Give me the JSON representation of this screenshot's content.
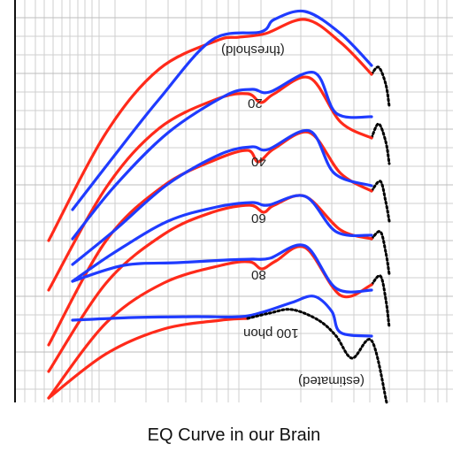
{
  "caption": "EQ Curve in our Brain",
  "chart_data": {
    "type": "line",
    "title": "EQ Curve in our Brain",
    "note": "The figure is shown flipped horizontally and vertically; labels appear mirrored.",
    "grid": true,
    "colors": {
      "red": "#ff2a1a",
      "blue": "#1f3bff",
      "estimated": "#000000",
      "grid": "#cfcfcf",
      "axis": "#111111"
    },
    "labels": [
      "(threshold)",
      "20",
      "40",
      "60",
      "80",
      "100 phon",
      "(estimated)"
    ],
    "series": [
      {
        "name": "(threshold)",
        "color": "red",
        "points": [
          [
            55,
            272
          ],
          [
            120,
            150
          ],
          [
            180,
            78
          ],
          [
            245,
            46
          ],
          [
            270,
            42
          ],
          [
            300,
            38
          ],
          [
            345,
            22
          ],
          [
            385,
            48
          ],
          [
            420,
            84
          ]
        ]
      },
      {
        "name": "(threshold)",
        "color": "blue",
        "points": [
          [
            82,
            237
          ],
          [
            130,
            175
          ],
          [
            180,
            112
          ],
          [
            240,
            45
          ],
          [
            295,
            36
          ],
          [
            310,
            22
          ],
          [
            345,
            13
          ],
          [
            385,
            38
          ],
          [
            420,
            74
          ]
        ]
      },
      {
        "name": "20",
        "color": "red",
        "points": [
          [
            55,
            328
          ],
          [
            120,
            212
          ],
          [
            180,
            145
          ],
          [
            245,
            112
          ],
          [
            280,
            106
          ],
          [
            295,
            116
          ],
          [
            310,
            106
          ],
          [
            350,
            88
          ],
          [
            385,
            138
          ],
          [
            420,
            156
          ]
        ]
      },
      {
        "name": "20",
        "color": "blue",
        "points": [
          [
            82,
            270
          ],
          [
            130,
            210
          ],
          [
            190,
            150
          ],
          [
            255,
            108
          ],
          [
            285,
            101
          ],
          [
            305,
            104
          ],
          [
            355,
            82
          ],
          [
            380,
            128
          ],
          [
            420,
            132
          ]
        ]
      },
      {
        "name": "40",
        "color": "red",
        "points": [
          [
            55,
            390
          ],
          [
            120,
            272
          ],
          [
            185,
            210
          ],
          [
            245,
            180
          ],
          [
            280,
            170
          ],
          [
            292,
            183
          ],
          [
            310,
            168
          ],
          [
            350,
            150
          ],
          [
            385,
            196
          ],
          [
            420,
            216
          ]
        ]
      },
      {
        "name": "40",
        "color": "blue",
        "points": [
          [
            82,
            299
          ],
          [
            130,
            260
          ],
          [
            190,
            208
          ],
          [
            250,
            174
          ],
          [
            285,
            166
          ],
          [
            303,
            169
          ],
          [
            350,
            148
          ],
          [
            378,
            196
          ],
          [
            420,
            210
          ]
        ]
      },
      {
        "name": "60",
        "color": "red",
        "points": [
          [
            55,
            420
          ],
          [
            120,
            320
          ],
          [
            185,
            265
          ],
          [
            240,
            240
          ],
          [
            282,
            232
          ],
          [
            298,
            240
          ],
          [
            310,
            232
          ],
          [
            345,
            222
          ],
          [
            385,
            260
          ],
          [
            420,
            270
          ]
        ]
      },
      {
        "name": "60",
        "color": "blue",
        "points": [
          [
            82,
            318
          ],
          [
            130,
            285
          ],
          [
            190,
            250
          ],
          [
            245,
            234
          ],
          [
            285,
            229
          ],
          [
            303,
            232
          ],
          [
            345,
            222
          ],
          [
            380,
            262
          ],
          [
            420,
            266
          ]
        ]
      },
      {
        "name": "80",
        "color": "red",
        "points": [
          [
            55,
            450
          ],
          [
            120,
            365
          ],
          [
            185,
            320
          ],
          [
            250,
            300
          ],
          [
            282,
            296
          ],
          [
            296,
            304
          ],
          [
            312,
            295
          ],
          [
            345,
            280
          ],
          [
            385,
            334
          ],
          [
            420,
            322
          ]
        ]
      },
      {
        "name": "80",
        "color": "blue",
        "points": [
          [
            82,
            318
          ],
          [
            140,
            300
          ],
          [
            200,
            297
          ],
          [
            255,
            294
          ],
          [
            285,
            293
          ],
          [
            305,
            292
          ],
          [
            345,
            278
          ],
          [
            380,
            326
          ],
          [
            420,
            328
          ]
        ]
      },
      {
        "name": "100 phon",
        "color": "red",
        "points": [
          [
            55,
            450
          ],
          [
            120,
            400
          ],
          [
            185,
            372
          ],
          [
            250,
            362
          ],
          [
            280,
            360
          ]
        ]
      },
      {
        "name": "100 phon",
        "color": "blue",
        "points": [
          [
            82,
            362
          ],
          [
            150,
            359
          ],
          [
            220,
            358
          ],
          [
            272,
            358
          ],
          [
            300,
            352
          ],
          [
            330,
            342
          ],
          [
            355,
            335
          ],
          [
            375,
            352
          ],
          [
            385,
            376
          ],
          [
            420,
            380
          ]
        ]
      },
      {
        "name": "(estimated)",
        "color": "estimated",
        "dashed": true,
        "points": [
          [
            280,
            360
          ],
          [
            305,
            354
          ],
          [
            330,
            350
          ],
          [
            360,
            362
          ],
          [
            380,
            380
          ],
          [
            398,
            405
          ],
          [
            420,
            385
          ],
          [
            437,
            455
          ]
        ]
      }
    ]
  }
}
